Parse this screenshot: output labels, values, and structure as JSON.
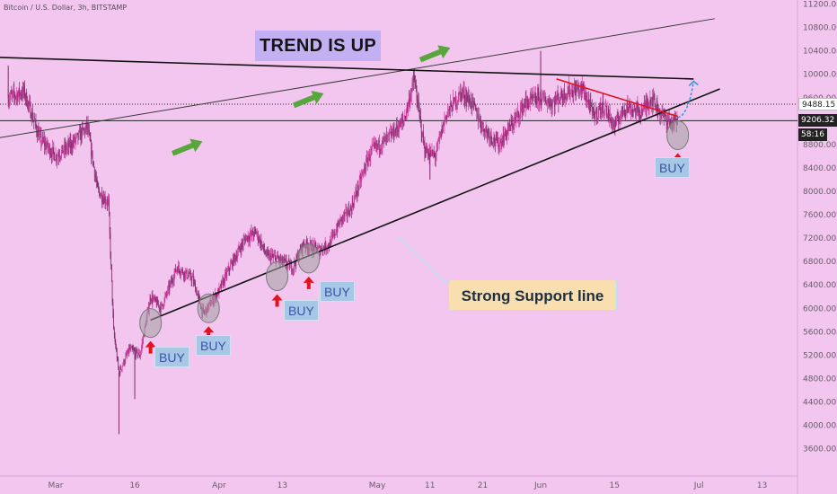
{
  "header": {
    "symbol_line": "Bitcoin / U.S. Dollar, 3h, BITSTAMP"
  },
  "annotations": {
    "trend_text": "TREND IS UP",
    "support_text": "Strong Support line",
    "buy_text": "BUY"
  },
  "price_badges": [
    {
      "value": "9488.15",
      "price": 9488.15,
      "style": "light"
    },
    {
      "value": "9206.32",
      "price": 9206.32,
      "style": "dark"
    },
    {
      "value": "58:16",
      "price": 8960,
      "style": "dark"
    }
  ],
  "colors": {
    "background": "#f3c6f0",
    "candle_up": "#cc3a9a",
    "candle_down": "#7a2a66",
    "trend_arrow": "#58a63c",
    "buy_arrow": "#e0141e",
    "red_line": "#e0141e",
    "forecast": "#2a9ad8"
  },
  "chart_data": {
    "type": "candlestick",
    "title": "Bitcoin / U.S. Dollar, 3h, BITSTAMP",
    "xlabel": "",
    "ylabel": "",
    "x_axis_ticks": [
      "Mar",
      "16",
      "Apr",
      "13",
      "May",
      "11",
      "21",
      "Jun",
      "15",
      "Jul",
      "13"
    ],
    "y_axis_ticks": [
      11200,
      10800,
      10400,
      10000,
      9600,
      9200,
      8800,
      8400,
      8000,
      7600,
      7200,
      6800,
      6400,
      6000,
      5600,
      5200,
      4800,
      4400,
      4000,
      3600
    ],
    "ylim": [
      3300,
      11450
    ],
    "axis_side": "right",
    "grid": false,
    "price_path": [
      {
        "date": "2020-02-21",
        "price": 9600
      },
      {
        "date": "2020-02-24",
        "price": 9700
      },
      {
        "date": "2020-02-27",
        "price": 8900
      },
      {
        "date": "2020-03-01",
        "price": 8600
      },
      {
        "date": "2020-03-04",
        "price": 8800
      },
      {
        "date": "2020-03-07",
        "price": 9100
      },
      {
        "date": "2020-03-09",
        "price": 8000
      },
      {
        "date": "2020-03-11",
        "price": 7800
      },
      {
        "date": "2020-03-12",
        "price": 5600
      },
      {
        "date": "2020-03-13",
        "price": 4900
      },
      {
        "date": "2020-03-15",
        "price": 5300
      },
      {
        "date": "2020-03-17",
        "price": 5200
      },
      {
        "date": "2020-03-19",
        "price": 6200
      },
      {
        "date": "2020-03-21",
        "price": 6000
      },
      {
        "date": "2020-03-24",
        "price": 6700
      },
      {
        "date": "2020-03-27",
        "price": 6500
      },
      {
        "date": "2020-03-29",
        "price": 5900
      },
      {
        "date": "2020-04-01",
        "price": 6300
      },
      {
        "date": "2020-04-03",
        "price": 6700
      },
      {
        "date": "2020-04-06",
        "price": 7200
      },
      {
        "date": "2020-04-08",
        "price": 7300
      },
      {
        "date": "2020-04-10",
        "price": 6900
      },
      {
        "date": "2020-04-12",
        "price": 6850
      },
      {
        "date": "2020-04-15",
        "price": 6700
      },
      {
        "date": "2020-04-17",
        "price": 7100
      },
      {
        "date": "2020-04-20",
        "price": 7000
      },
      {
        "date": "2020-04-22",
        "price": 7100
      },
      {
        "date": "2020-04-24",
        "price": 7500
      },
      {
        "date": "2020-04-26",
        "price": 7700
      },
      {
        "date": "2020-04-29",
        "price": 8500
      },
      {
        "date": "2020-04-30",
        "price": 8700
      },
      {
        "date": "2020-05-03",
        "price": 8900
      },
      {
        "date": "2020-05-06",
        "price": 9200
      },
      {
        "date": "2020-05-08",
        "price": 9900
      },
      {
        "date": "2020-05-10",
        "price": 8700
      },
      {
        "date": "2020-05-12",
        "price": 8600
      },
      {
        "date": "2020-05-14",
        "price": 9300
      },
      {
        "date": "2020-05-17",
        "price": 9700
      },
      {
        "date": "2020-05-19",
        "price": 9500
      },
      {
        "date": "2020-05-21",
        "price": 9100
      },
      {
        "date": "2020-05-24",
        "price": 8800
      },
      {
        "date": "2020-05-27",
        "price": 9200
      },
      {
        "date": "2020-05-29",
        "price": 9500
      },
      {
        "date": "2020-06-01",
        "price": 9600
      },
      {
        "date": "2020-06-03",
        "price": 9500
      },
      {
        "date": "2020-06-06",
        "price": 9700
      },
      {
        "date": "2020-06-09",
        "price": 9750
      },
      {
        "date": "2020-06-11",
        "price": 9300
      },
      {
        "date": "2020-06-13",
        "price": 9450
      },
      {
        "date": "2020-06-15",
        "price": 9100
      },
      {
        "date": "2020-06-17",
        "price": 9450
      },
      {
        "date": "2020-06-20",
        "price": 9350
      },
      {
        "date": "2020-06-22",
        "price": 9600
      },
      {
        "date": "2020-06-24",
        "price": 9300
      },
      {
        "date": "2020-06-26",
        "price": 9150
      },
      {
        "date": "2020-06-27",
        "price": 9206
      }
    ],
    "price_extremes": [
      {
        "date": "2020-03-13",
        "price": 3850
      },
      {
        "date": "2020-03-16",
        "price": 4450
      },
      {
        "date": "2020-05-11",
        "price": 8200
      },
      {
        "date": "2020-06-01",
        "price": 10400
      },
      {
        "date": "2020-05-08",
        "price": 10100
      },
      {
        "date": "2020-02-21",
        "price": 10150
      }
    ],
    "trend_lines": [
      {
        "name": "upper-channel",
        "from": {
          "date": "2020-02-15",
          "price": 8850
        },
        "to": {
          "date": "2020-07-04",
          "price": 10950
        },
        "color": "#3a3a3a"
      },
      {
        "name": "resistance",
        "from": {
          "date": "2020-02-15",
          "price": 10300
        },
        "to": {
          "date": "2020-06-30",
          "price": 9920
        },
        "color": "#111111"
      },
      {
        "name": "support",
        "from": {
          "date": "2020-03-19",
          "price": 5800
        },
        "to": {
          "date": "2020-07-05",
          "price": 9750
        },
        "color": "#111111"
      },
      {
        "name": "falling-wedge",
        "from": {
          "date": "2020-06-04",
          "price": 9920
        },
        "to": {
          "date": "2020-06-27",
          "price": 9280
        },
        "color": "#e0141e"
      }
    ],
    "horizontal_lines": [
      {
        "price": 9488.15,
        "style": "dotted"
      },
      {
        "price": 9206.32,
        "style": "solid"
      }
    ],
    "buy_signals": [
      {
        "date": "2020-03-19",
        "price": 5750
      },
      {
        "date": "2020-03-30",
        "price": 6000
      },
      {
        "date": "2020-04-12",
        "price": 6550
      },
      {
        "date": "2020-04-18",
        "price": 6850
      },
      {
        "date": "2020-06-27",
        "price": 8960
      }
    ],
    "trend_arrows": [
      {
        "date": "2020-03-26",
        "price": 8750
      },
      {
        "date": "2020-04-18",
        "price": 9570
      },
      {
        "date": "2020-05-12",
        "price": 10350
      }
    ],
    "forecast": [
      {
        "date": "2020-06-27",
        "price": 9260
      },
      {
        "date": "2020-06-29",
        "price": 9300
      },
      {
        "date": "2020-06-30",
        "price": 9880
      }
    ]
  }
}
